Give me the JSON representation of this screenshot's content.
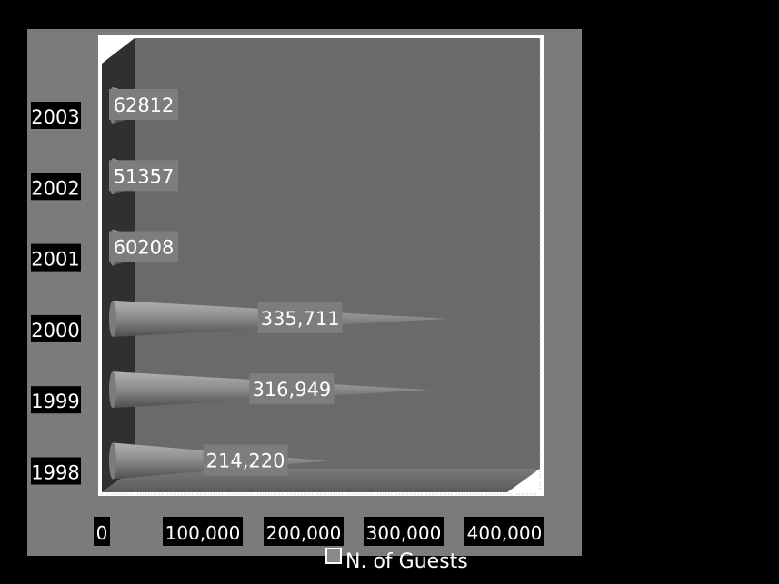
{
  "chart_data": {
    "type": "bar",
    "orientation": "horizontal",
    "style": "3d-cone",
    "categories": [
      "1998",
      "1999",
      "2000",
      "2001",
      "2002",
      "2003"
    ],
    "series": [
      {
        "name": "N. of Guests",
        "values": [
          214220,
          316949,
          335711,
          60208,
          51357,
          62812
        ],
        "labels": [
          "214,220",
          "316,949",
          "335,711",
          "60208",
          "51357",
          "62812"
        ]
      }
    ],
    "x_ticks": [
      "0",
      "100,000",
      "200,000",
      "300,000",
      "400,000"
    ],
    "xlim": [
      0,
      400000
    ],
    "grid": false,
    "legend_position": "bottom-center",
    "colors": {
      "page_background": "#000000",
      "outer_panel": "#7b7b7b",
      "plot_background": "#6a6a6a",
      "frame": "#ffffff",
      "cone": "#8a8a8a",
      "label_box": "#7d7d7d",
      "label_text": "#ffffff",
      "tick_label_box": "#000000"
    }
  }
}
